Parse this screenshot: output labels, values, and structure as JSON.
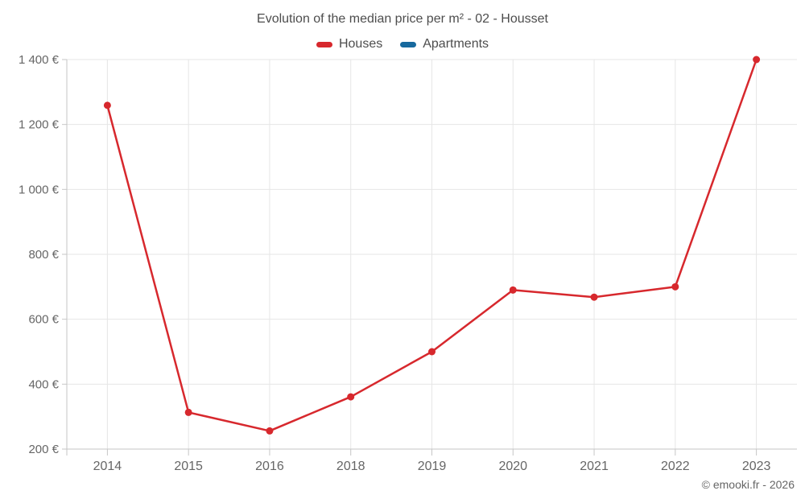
{
  "header": {
    "title": "Evolution of the median price per m² - 02 - Housset"
  },
  "legend": {
    "items": [
      {
        "id": "houses",
        "label": "Houses",
        "color": "#d7282d"
      },
      {
        "id": "apartments",
        "label": "Apartments",
        "color": "#17699e"
      }
    ]
  },
  "footer": {
    "credit": "© emooki.fr - 2026"
  },
  "colors": {
    "houses": "#d7282d",
    "apartments": "#17699e",
    "grid": "#e6e6e6",
    "axis": "#c6c6c6",
    "title_text": "#4d4d4d",
    "axis_text": "#666666"
  },
  "chart_data": {
    "type": "line",
    "title": "Evolution of the median price per m² - 02 - Housset",
    "categories": [
      "2014",
      "2015",
      "2016",
      "2018",
      "2019",
      "2020",
      "2021",
      "2022",
      "2023"
    ],
    "series": [
      {
        "name": "Houses",
        "color": "#d7282d",
        "values": [
          1259,
          313,
          256,
          361,
          500,
          690,
          668,
          700,
          1400
        ]
      },
      {
        "name": "Apartments",
        "color": "#17699e",
        "values": []
      }
    ],
    "xlabel": "",
    "ylabel": "",
    "ylim": [
      200,
      1400
    ],
    "ytick_step": 200,
    "ytick_labels": [
      "200 €",
      "400 €",
      "600 €",
      "800 €",
      "1 000 €",
      "1 200 €",
      "1 400 €"
    ],
    "grid": true,
    "legend_position": "top",
    "marker": "circle"
  }
}
